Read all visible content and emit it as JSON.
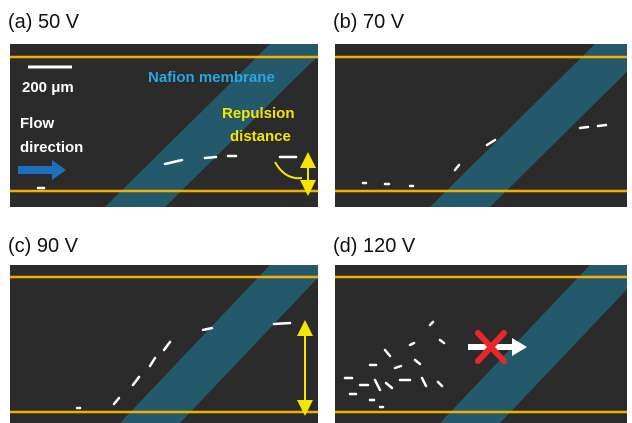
{
  "panels": [
    {
      "label": "(a) 50 V"
    },
    {
      "label": "(b) 70 V"
    },
    {
      "label": "(c) 90 V"
    },
    {
      "label": "(d) 120 V"
    }
  ],
  "annotations": {
    "scale_bar": "200 μm",
    "membrane": "Nafion membrane",
    "flow": [
      "Flow",
      "direction"
    ],
    "repulsion": [
      "Repulsion",
      "distance"
    ]
  }
}
